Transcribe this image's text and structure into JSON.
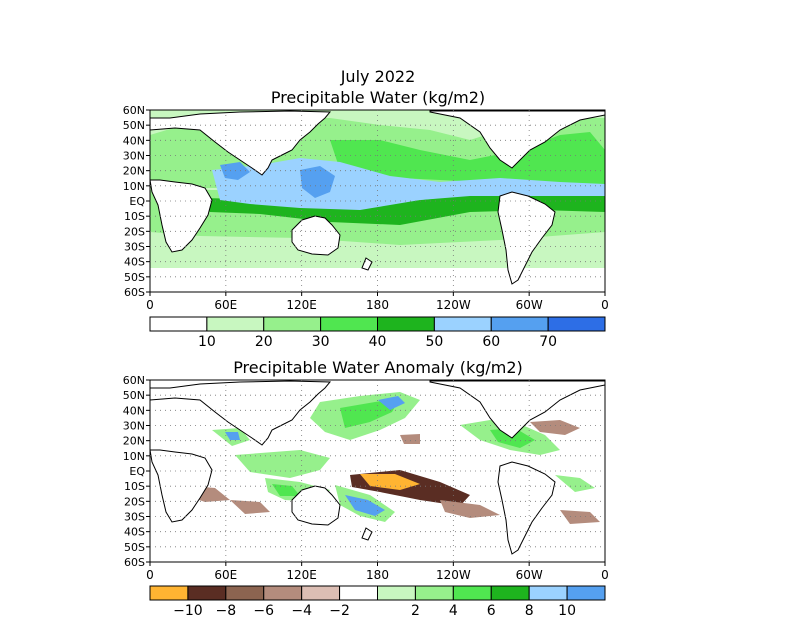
{
  "title_line1": "July 2022",
  "title_line2": "Precipitable Water (kg/m2)",
  "anomaly_title": "Precipitable Water Anomaly (kg/m2)",
  "lat_labels": [
    "60N",
    "50N",
    "40N",
    "30N",
    "20N",
    "10N",
    "EQ",
    "10S",
    "20S",
    "30S",
    "40S",
    "50S",
    "60S"
  ],
  "lon_labels": [
    "0",
    "60E",
    "120E",
    "180",
    "120W",
    "60W",
    "0"
  ],
  "pw_colorbar": {
    "colors": [
      "#ffffff",
      "#c8f7c0",
      "#96f08c",
      "#50e650",
      "#1eb41e",
      "#9bd2ff",
      "#55a0f0",
      "#2d6ee6"
    ],
    "labels": [
      "10",
      "20",
      "30",
      "40",
      "50",
      "60",
      "70"
    ]
  },
  "anomaly_colorbar": {
    "colors": [
      "#ffb432",
      "#5a2d23",
      "#8c6450",
      "#b48c7d",
      "#dcbeb4",
      "#ffffff",
      "#c8f7c0",
      "#96f08c",
      "#50e650",
      "#1eb41e",
      "#9bd2ff",
      "#55a0f0"
    ],
    "labels": [
      "−10",
      "−8",
      "−6",
      "−4",
      "−2",
      "2",
      "4",
      "6",
      "8",
      "10"
    ]
  }
}
